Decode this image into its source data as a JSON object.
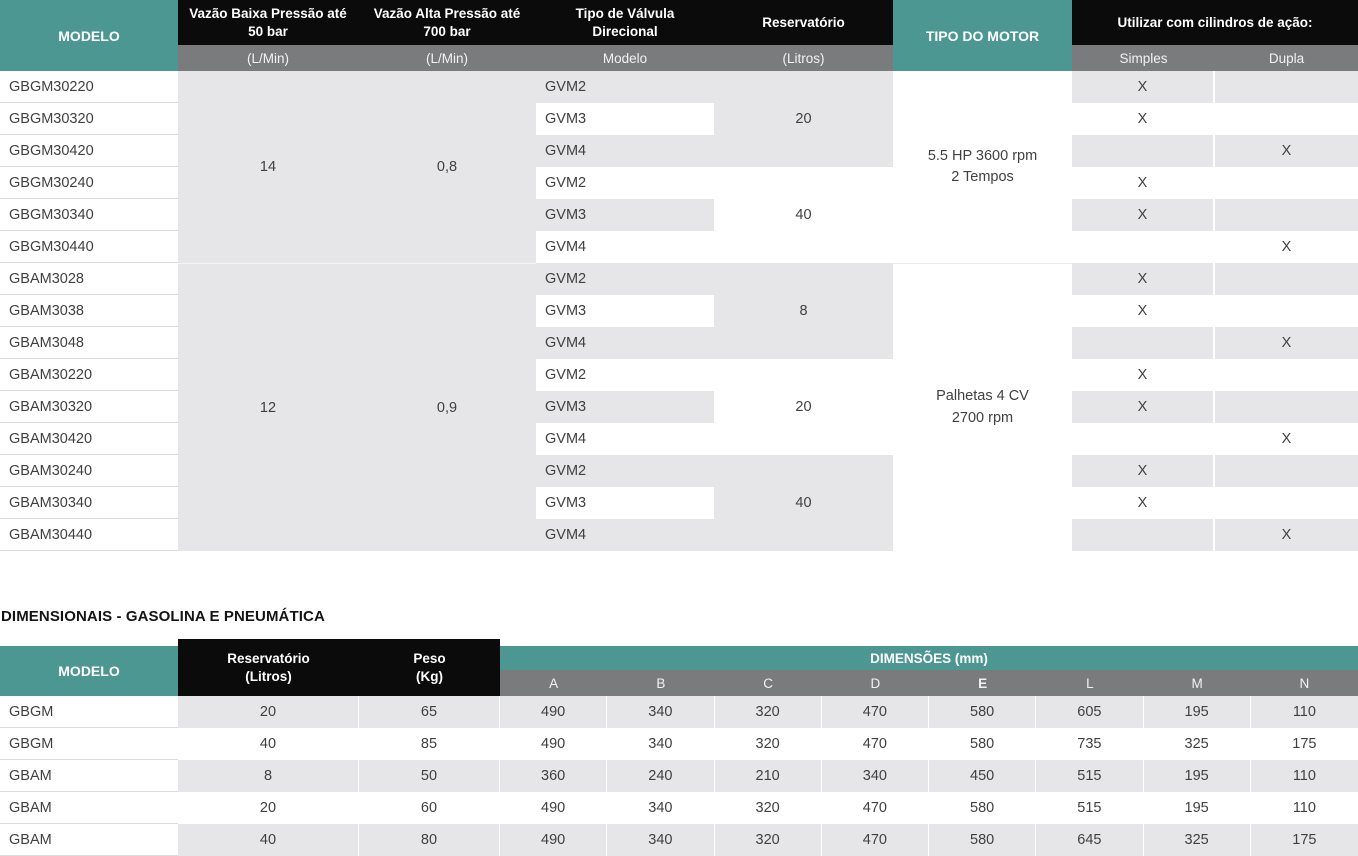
{
  "colors": {
    "teal": "#4D9793",
    "header_black": "#0B0B0B",
    "subheader_gray": "#7A7B7D",
    "stripe_gray": "#E6E6E8",
    "body_text": "#3F4040",
    "row_line": "#DBDBDB"
  },
  "table1": {
    "header": {
      "modelo": "MODELO",
      "low_pressure": "Vazão Baixa Pressão até 50 bar",
      "high_pressure": "Vazão Alta Pressão até 700 bar",
      "valve_type": "Tipo de Válvula Direcional",
      "reservoir": "Reservatório",
      "motor_type": "TIPO DO MOTOR",
      "cylinders": "Utilizar com cilindros de ação:"
    },
    "subheader": {
      "low_unit": "(L/Min)",
      "high_unit": "(L/Min)",
      "valve": "Modelo",
      "reservoir_unit": "(Litros)",
      "simples": "Simples",
      "dupla": "Dupla"
    },
    "flow_groups": [
      {
        "low": "14",
        "high": "0,8"
      },
      {
        "low": "12",
        "high": "0,9"
      }
    ],
    "reservoir_groups": [
      {
        "value": "20"
      },
      {
        "value": "40"
      },
      {
        "value": "8"
      },
      {
        "value": "20"
      },
      {
        "value": "40"
      }
    ],
    "motor_groups": [
      {
        "line1": "5.5 HP 3600 rpm",
        "line2": "2 Tempos"
      },
      {
        "line1": "Palhetas 4 CV",
        "line2": "2700 rpm"
      }
    ],
    "rows": [
      {
        "model": "GBGM30220",
        "valve": "GVM2",
        "simples": "X",
        "dupla": ""
      },
      {
        "model": "GBGM30320",
        "valve": "GVM3",
        "simples": "X",
        "dupla": ""
      },
      {
        "model": "GBGM30420",
        "valve": "GVM4",
        "simples": "",
        "dupla": "X"
      },
      {
        "model": "GBGM30240",
        "valve": "GVM2",
        "simples": "X",
        "dupla": ""
      },
      {
        "model": "GBGM30340",
        "valve": "GVM3",
        "simples": "X",
        "dupla": ""
      },
      {
        "model": "GBGM30440",
        "valve": "GVM4",
        "simples": "",
        "dupla": "X"
      },
      {
        "model": "GBAM3028",
        "valve": "GVM2",
        "simples": "X",
        "dupla": ""
      },
      {
        "model": "GBAM3038",
        "valve": "GVM3",
        "simples": "X",
        "dupla": ""
      },
      {
        "model": "GBAM3048",
        "valve": "GVM4",
        "simples": "",
        "dupla": "X"
      },
      {
        "model": "GBAM30220",
        "valve": "GVM2",
        "simples": "X",
        "dupla": ""
      },
      {
        "model": "GBAM30320",
        "valve": "GVM3",
        "simples": "X",
        "dupla": ""
      },
      {
        "model": "GBAM30420",
        "valve": "GVM4",
        "simples": "",
        "dupla": "X"
      },
      {
        "model": "GBAM30240",
        "valve": "GVM2",
        "simples": "X",
        "dupla": ""
      },
      {
        "model": "GBAM30340",
        "valve": "GVM3",
        "simples": "X",
        "dupla": ""
      },
      {
        "model": "GBAM30440",
        "valve": "GVM4",
        "simples": "",
        "dupla": "X"
      }
    ]
  },
  "section2": {
    "title": "DIMENSIONAIS - GASOLINA E PNEUMÁTICA",
    "table2": {
      "header": {
        "modelo": "MODELO",
        "reservoir_line1": "Reservatório",
        "reservoir_line2": "(Litros)",
        "weight_line1": "Peso",
        "weight_line2": "(Kg)",
        "dimensions": "DIMENSÕES (mm)"
      },
      "dim_letters": [
        "A",
        "B",
        "C",
        "D",
        "E",
        "L",
        "M",
        "N"
      ],
      "rows": [
        {
          "model": "GBGM",
          "reservoir": "20",
          "weight": "65",
          "dims": [
            "490",
            "340",
            "320",
            "470",
            "580",
            "605",
            "195",
            "110"
          ]
        },
        {
          "model": "GBGM",
          "reservoir": "40",
          "weight": "85",
          "dims": [
            "490",
            "340",
            "320",
            "470",
            "580",
            "735",
            "325",
            "175"
          ]
        },
        {
          "model": "GBAM",
          "reservoir": "8",
          "weight": "50",
          "dims": [
            "360",
            "240",
            "210",
            "340",
            "450",
            "515",
            "195",
            "110"
          ]
        },
        {
          "model": "GBAM",
          "reservoir": "20",
          "weight": "60",
          "dims": [
            "490",
            "340",
            "320",
            "470",
            "580",
            "515",
            "195",
            "110"
          ]
        },
        {
          "model": "GBAM",
          "reservoir": "40",
          "weight": "80",
          "dims": [
            "490",
            "340",
            "320",
            "470",
            "580",
            "645",
            "325",
            "175"
          ]
        }
      ]
    }
  }
}
